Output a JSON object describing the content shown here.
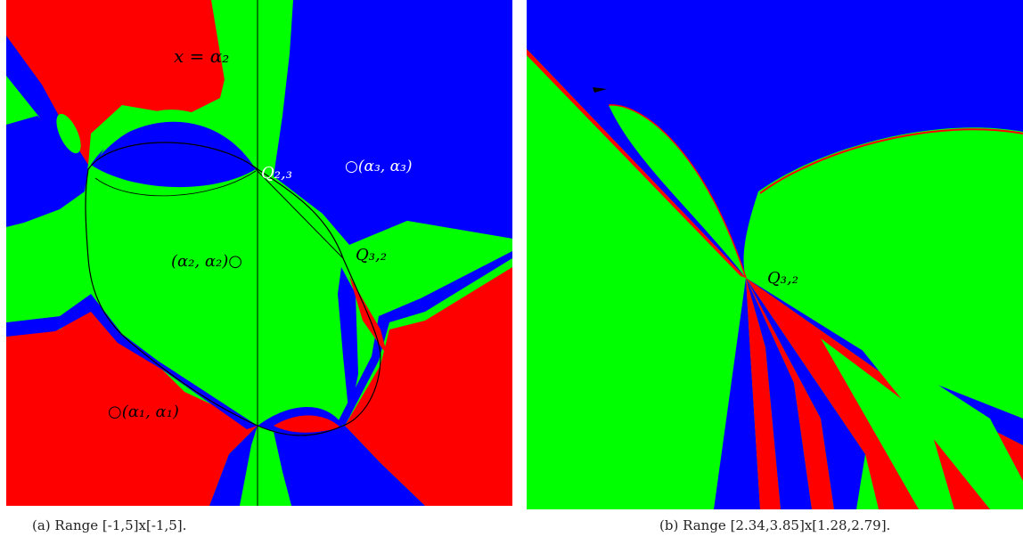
{
  "colors": {
    "red": "#ff0000",
    "green": "#00ff00",
    "blue": "#0000ff",
    "curve": "#000000",
    "label_light": "#ffffff"
  },
  "panel_a": {
    "labels": {
      "line": "x = α₂",
      "q23": "Q₂,₃",
      "q32": "Q₃,₂",
      "alpha3": "○(α₃, α₃)",
      "alpha2": "(α₂, α₂)○",
      "alpha1": "○(α₁, α₁)"
    },
    "caption": "(a) Range [-1,5]x[-1,5]."
  },
  "panel_b": {
    "labels": {
      "q32": "Q₃,₂"
    },
    "caption": "(b) Range [2.34,3.85]x[1.28,2.79]."
  }
}
